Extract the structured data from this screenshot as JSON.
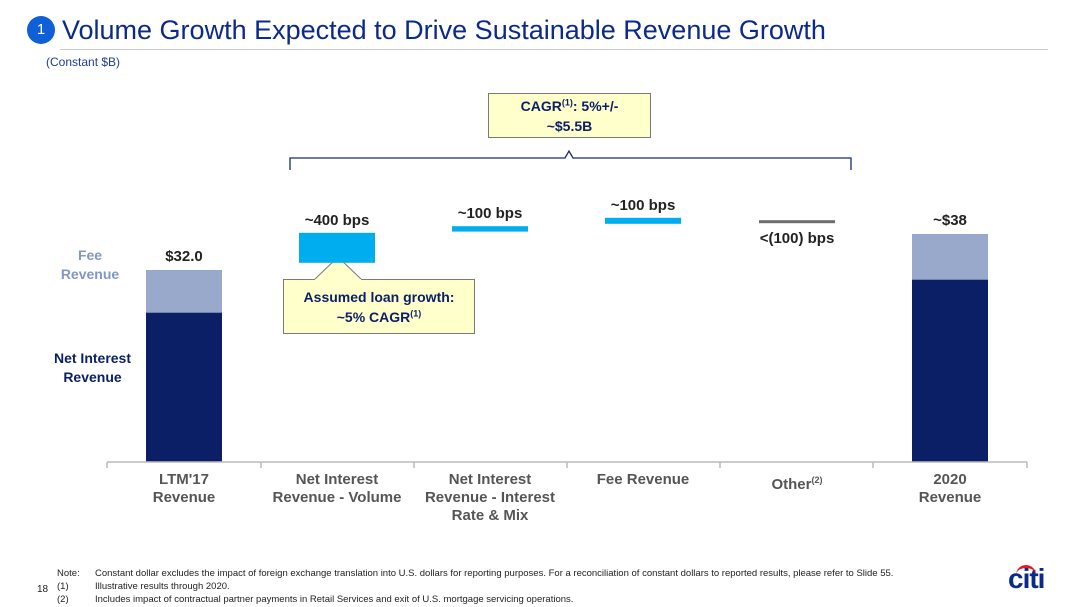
{
  "header": {
    "badge": "1",
    "title": "Volume Growth Expected to Drive Sustainable Revenue Growth",
    "subtitle": "(Constant $B)"
  },
  "callouts": {
    "cagr_line1": "CAGR",
    "cagr_sup": "(1)",
    "cagr_line1_rest": ": 5%+/-",
    "cagr_line2": "~$5.5B",
    "loan_line1": "Assumed loan growth:",
    "loan_line2": "~5% CAGR",
    "loan_sup": "(1)"
  },
  "segment_labels": {
    "fee": "Fee Revenue",
    "nir": "Net Interest Revenue"
  },
  "colors": {
    "net_interest": "#0b1f66",
    "fee": "#98a9cc",
    "driver": "#00aeef",
    "other": "#6d6d6d",
    "callout_fill": "#ffffcc"
  },
  "chart_data": {
    "type": "bar",
    "subtype": "waterfall",
    "title": "Volume Growth Expected to Drive Sustainable Revenue Growth",
    "ylabel": "(Constant $B)",
    "categories": [
      {
        "line1": "LTM'17",
        "line2": "Revenue",
        "line3": "",
        "sup": ""
      },
      {
        "line1": "Net Interest",
        "line2": "Revenue - Volume",
        "line3": "",
        "sup": ""
      },
      {
        "line1": "Net Interest",
        "line2": "Revenue - Interest",
        "line3": "Rate & Mix",
        "sup": ""
      },
      {
        "line1": "Fee Revenue",
        "line2": "",
        "line3": "",
        "sup": ""
      },
      {
        "line1": "Other",
        "line2": "",
        "line3": "",
        "sup": "(2)"
      },
      {
        "line1": "2020",
        "line2": "Revenue",
        "line3": "",
        "sup": ""
      }
    ],
    "totals": [
      {
        "category": "LTM'17 Revenue",
        "label": "$32.0",
        "value": 32.0,
        "net_interest": 24.9,
        "fee": 7.1
      },
      {
        "category": "2020 Revenue",
        "label": "~$38",
        "value": 38.0,
        "net_interest": 30.4,
        "fee": 7.6
      }
    ],
    "drivers": [
      {
        "category": "Net Interest Revenue - Volume",
        "label": "~400 bps",
        "start": 33.2,
        "end": 38.2
      },
      {
        "category": "Net Interest Revenue - Interest Rate & Mix",
        "label": "~100 bps",
        "start": 38.4,
        "end": 39.3
      },
      {
        "category": "Fee Revenue",
        "label": "~100 bps",
        "start": 39.7,
        "end": 40.7
      },
      {
        "category": "Other",
        "label": "<(100) bps",
        "start": 40.3,
        "end": 39.8
      }
    ],
    "ylim": [
      0,
      48
    ],
    "grid": false,
    "legend": "inline-left"
  },
  "notes": {
    "page": "18",
    "rows": [
      {
        "key": "Note:",
        "text": "Constant dollar excludes the impact of foreign exchange translation into U.S. dollars for reporting purposes.  For a reconciliation of constant dollars to reported results, please refer to Slide 55."
      },
      {
        "key": "(1)",
        "text": "Illustrative results through 2020."
      },
      {
        "key": "(2)",
        "text": "Includes impact of contractual partner payments in Retail Services and exit of U.S. mortgage servicing operations."
      }
    ]
  },
  "logo": {
    "text": "citi"
  }
}
